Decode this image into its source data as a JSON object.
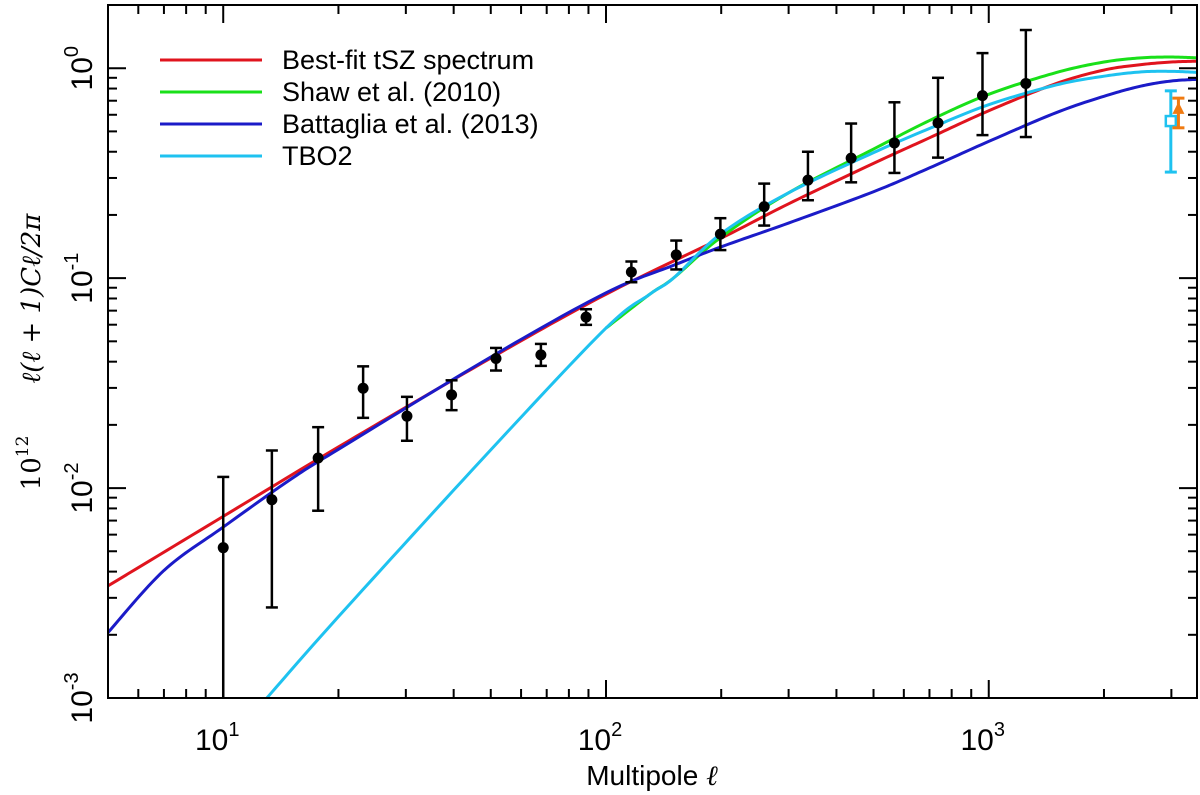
{
  "chart_data": {
    "type": "line",
    "xscale": "log",
    "yscale": "log",
    "xlim": [
      5,
      3500
    ],
    "ylim": [
      0.001,
      2.0
    ],
    "xlabel_text": "Multipole",
    "xlabel_symbol": "ℓ",
    "ylabel_prefix": "10",
    "ylabel_prefix_sup": "12",
    "ylabel_expr": "ℓ(ℓ + 1)Cℓ/2π",
    "x_ticks": [
      {
        "value": 10,
        "base": "10",
        "exp": "1"
      },
      {
        "value": 100,
        "base": "10",
        "exp": "2"
      },
      {
        "value": 1000,
        "base": "10",
        "exp": "3"
      }
    ],
    "y_ticks": [
      {
        "value": 0.001,
        "base": "10",
        "exp": "-3"
      },
      {
        "value": 0.01,
        "base": "10",
        "exp": "-2"
      },
      {
        "value": 0.1,
        "base": "10",
        "exp": "-1"
      },
      {
        "value": 1,
        "base": "10",
        "exp": "0"
      }
    ],
    "series": [
      {
        "name": "Best-fit tSZ spectrum",
        "color": "#e0141e",
        "points": [
          [
            5,
            0.00342
          ],
          [
            10,
            0.00733
          ],
          [
            20,
            0.0157
          ],
          [
            50,
            0.0416
          ],
          [
            100,
            0.0838
          ],
          [
            200,
            0.155
          ],
          [
            300,
            0.226
          ],
          [
            500,
            0.352
          ],
          [
            700,
            0.466
          ],
          [
            1000,
            0.627
          ],
          [
            1500,
            0.845
          ],
          [
            2000,
            0.98
          ],
          [
            2500,
            1.04
          ],
          [
            3000,
            1.07
          ],
          [
            3500,
            1.08
          ]
        ]
      },
      {
        "name": "Shaw et al. (2010)",
        "color": "#19e019",
        "points": [
          [
            100,
            0.0578
          ],
          [
            130,
            0.0837
          ],
          [
            150,
            0.1
          ],
          [
            200,
            0.157
          ],
          [
            300,
            0.255
          ],
          [
            500,
            0.412
          ],
          [
            700,
            0.563
          ],
          [
            1000,
            0.751
          ],
          [
            1500,
            0.953
          ],
          [
            2000,
            1.07
          ],
          [
            2500,
            1.12
          ],
          [
            3000,
            1.13
          ],
          [
            3500,
            1.12
          ]
        ]
      },
      {
        "name": "Battaglia et al. (2013)",
        "color": "#1b1bc8",
        "points": [
          [
            5,
            0.00205
          ],
          [
            7,
            0.00405
          ],
          [
            10,
            0.00652
          ],
          [
            15,
            0.011
          ],
          [
            20,
            0.0153
          ],
          [
            50,
            0.0421
          ],
          [
            100,
            0.0851
          ],
          [
            150,
            0.115
          ],
          [
            200,
            0.141
          ],
          [
            300,
            0.183
          ],
          [
            500,
            0.258
          ],
          [
            700,
            0.335
          ],
          [
            1000,
            0.448
          ],
          [
            1500,
            0.614
          ],
          [
            2000,
            0.735
          ],
          [
            2500,
            0.822
          ],
          [
            3000,
            0.869
          ],
          [
            3500,
            0.885
          ]
        ]
      },
      {
        "name": "TBO2",
        "color": "#1ec2f0",
        "points": [
          [
            13,
            0.001
          ],
          [
            20,
            0.00244
          ],
          [
            50,
            0.0152
          ],
          [
            100,
            0.0578
          ],
          [
            130,
            0.0837
          ],
          [
            150,
            0.1
          ],
          [
            200,
            0.163
          ],
          [
            300,
            0.255
          ],
          [
            500,
            0.396
          ],
          [
            700,
            0.516
          ],
          [
            1000,
            0.67
          ],
          [
            1500,
            0.832
          ],
          [
            2000,
            0.916
          ],
          [
            2500,
            0.96
          ],
          [
            3000,
            0.966
          ],
          [
            3500,
            0.955
          ]
        ]
      }
    ],
    "data_points": {
      "name": "measurements",
      "color": "#000000",
      "points": [
        {
          "x": 10,
          "y": 0.0052,
          "lo": 0.001,
          "hi": 0.0113
        },
        {
          "x": 13.4,
          "y": 0.0088,
          "lo": 0.0027,
          "hi": 0.0151
        },
        {
          "x": 17.7,
          "y": 0.0139,
          "lo": 0.0078,
          "hi": 0.0195
        },
        {
          "x": 23.2,
          "y": 0.0299,
          "lo": 0.0216,
          "hi": 0.038
        },
        {
          "x": 30.2,
          "y": 0.022,
          "lo": 0.0168,
          "hi": 0.0272
        },
        {
          "x": 39.5,
          "y": 0.0278,
          "lo": 0.0235,
          "hi": 0.0326
        },
        {
          "x": 51.6,
          "y": 0.0414,
          "lo": 0.0363,
          "hi": 0.0465
        },
        {
          "x": 67.6,
          "y": 0.0431,
          "lo": 0.0382,
          "hi": 0.0486
        },
        {
          "x": 88.7,
          "y": 0.0652,
          "lo": 0.0599,
          "hi": 0.0711
        },
        {
          "x": 116.5,
          "y": 0.107,
          "lo": 0.0956,
          "hi": 0.12
        },
        {
          "x": 152.6,
          "y": 0.129,
          "lo": 0.11,
          "hi": 0.151
        },
        {
          "x": 199,
          "y": 0.162,
          "lo": 0.136,
          "hi": 0.193
        },
        {
          "x": 259,
          "y": 0.219,
          "lo": 0.178,
          "hi": 0.282
        },
        {
          "x": 337,
          "y": 0.293,
          "lo": 0.235,
          "hi": 0.4
        },
        {
          "x": 437,
          "y": 0.373,
          "lo": 0.286,
          "hi": 0.545
        },
        {
          "x": 567,
          "y": 0.44,
          "lo": 0.317,
          "hi": 0.688
        },
        {
          "x": 737,
          "y": 0.548,
          "lo": 0.375,
          "hi": 0.9
        },
        {
          "x": 963,
          "y": 0.74,
          "lo": 0.48,
          "hi": 1.18
        },
        {
          "x": 1250,
          "y": 0.846,
          "lo": 0.47,
          "hi": 1.52
        }
      ]
    },
    "extra_points": [
      {
        "name": "cyan square point",
        "color": "#1ec2f0",
        "marker": "square",
        "x": 2990,
        "y": 0.56,
        "lo": 0.32,
        "hi": 0.78
      },
      {
        "name": "orange triangle point",
        "color": "#f07a10",
        "marker": "triangle",
        "x": 3130,
        "y": 0.64,
        "lo": 0.52,
        "hi": 0.72
      }
    ],
    "legend_position": "top-left"
  }
}
